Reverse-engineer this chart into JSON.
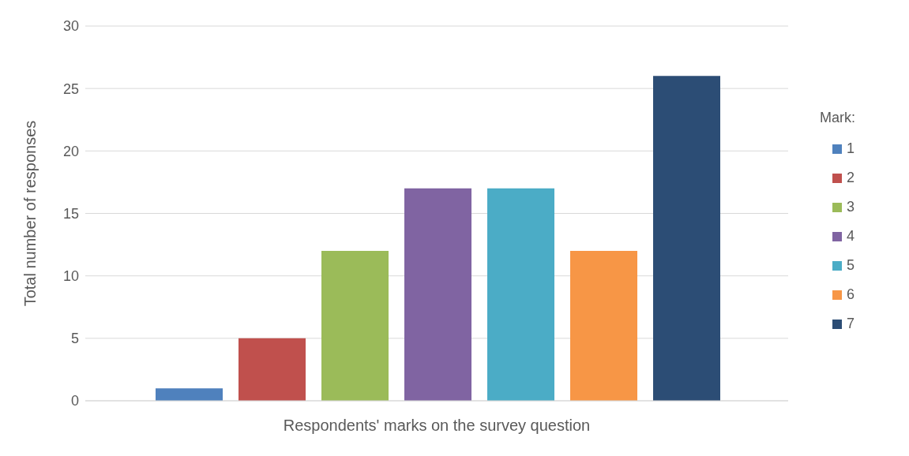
{
  "chart_data": {
    "type": "bar",
    "xlabel": "Respondents' marks on the survey question",
    "ylabel": "Total number of responses",
    "legend_title": "Mark:",
    "categories": [
      null
    ],
    "series": [
      {
        "name": "1",
        "color": "#4f81bd",
        "values": [
          1
        ]
      },
      {
        "name": "2",
        "color": "#c0504d",
        "values": [
          5
        ]
      },
      {
        "name": "3",
        "color": "#9bbb59",
        "values": [
          12
        ]
      },
      {
        "name": "4",
        "color": "#8064a2",
        "values": [
          17
        ]
      },
      {
        "name": "5",
        "color": "#4bacc6",
        "values": [
          17
        ]
      },
      {
        "name": "6",
        "color": "#f79646",
        "values": [
          12
        ]
      },
      {
        "name": "7",
        "color": "#2c4d75",
        "values": [
          26
        ]
      }
    ],
    "ylim": [
      0,
      30
    ],
    "yticks": [
      0,
      5,
      10,
      15,
      20,
      25,
      30
    ],
    "grid": "y",
    "legend": "right"
  }
}
